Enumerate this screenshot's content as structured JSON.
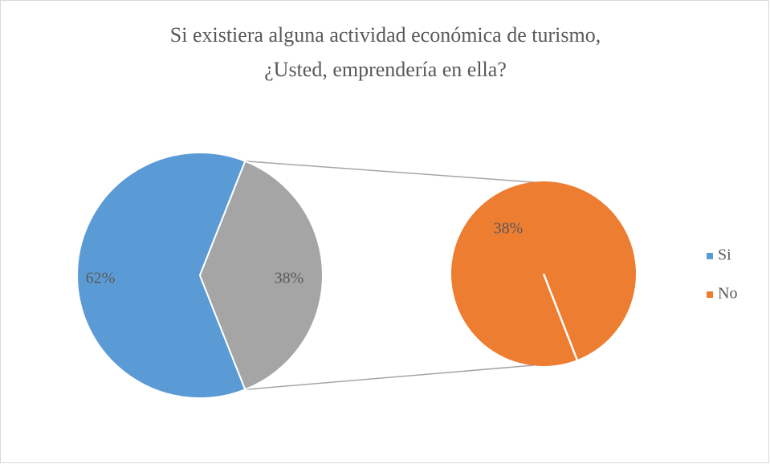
{
  "chart_data": {
    "type": "pie-of-pie",
    "title": [
      "Si existiera alguna actividad económica de turismo,",
      "¿Usted, emprendería en ella?"
    ],
    "categories": [
      "Si",
      "No"
    ],
    "values": [
      62,
      38
    ],
    "value_labels": [
      "62%",
      "38%"
    ],
    "colors": [
      "#5b9bd5",
      "#ed7d31"
    ],
    "other_color": "#a5a5a5",
    "legend": "right"
  }
}
